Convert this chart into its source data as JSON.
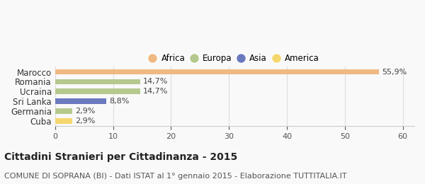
{
  "categories": [
    "Cuba",
    "Germania",
    "Sri Lanka",
    "Ucraina",
    "Romania",
    "Marocco"
  ],
  "values": [
    2.9,
    2.9,
    8.8,
    14.7,
    14.7,
    55.9
  ],
  "labels": [
    "2,9%",
    "2,9%",
    "8,8%",
    "14,7%",
    "14,7%",
    "55,9%"
  ],
  "colors": [
    "#f5d76e",
    "#b5c98e",
    "#6b7abf",
    "#b5c98e",
    "#b5c98e",
    "#f0b882"
  ],
  "legend": [
    {
      "label": "Africa",
      "color": "#f0b882"
    },
    {
      "label": "Europa",
      "color": "#b5c98e"
    },
    {
      "label": "Asia",
      "color": "#6b7abf"
    },
    {
      "label": "America",
      "color": "#f5d76e"
    }
  ],
  "xlim": [
    0,
    62
  ],
  "xticks": [
    0,
    10,
    20,
    30,
    40,
    50,
    60
  ],
  "title": "Cittadini Stranieri per Cittadinanza - 2015",
  "subtitle": "COMUNE DI SOPRANA (BI) - Dati ISTAT al 1° gennaio 2015 - Elaborazione TUTTITALIA.IT",
  "background_color": "#f9f9f9",
  "bar_height": 0.55,
  "title_fontsize": 10,
  "subtitle_fontsize": 8
}
